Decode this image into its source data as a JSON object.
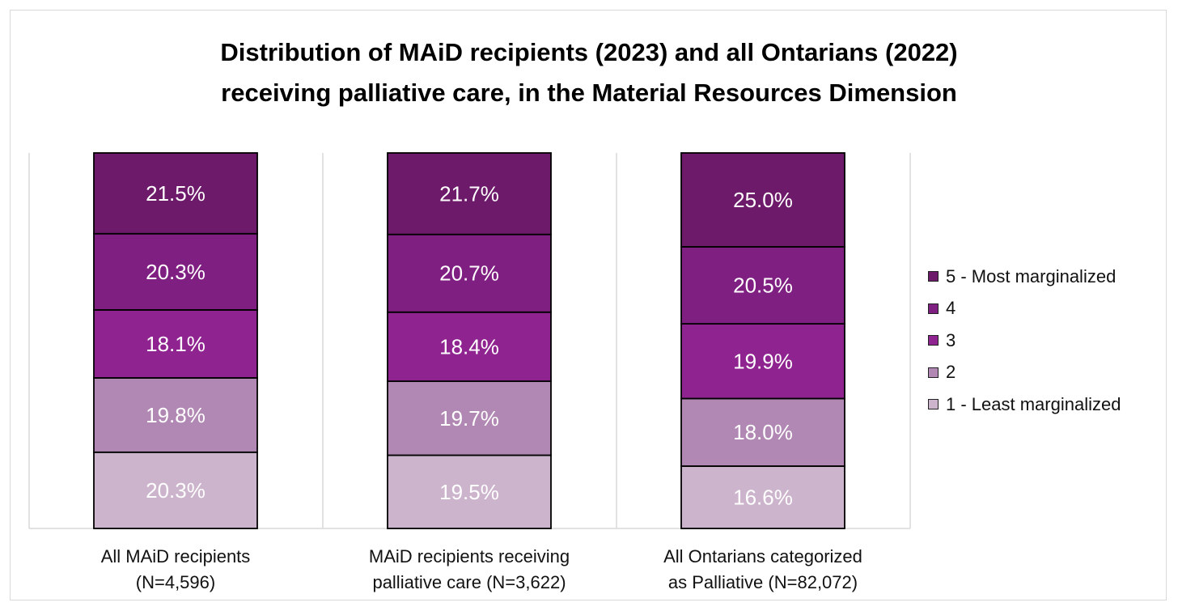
{
  "chart_data": {
    "type": "bar",
    "stacked": true,
    "title_lines": [
      "Distribution of MAiD recipients (2023) and all Ontarians (2022)",
      "receiving palliative care, in the Material Resources Dimension"
    ],
    "categories": [
      {
        "line1": "All MAiD recipients",
        "line2": "(N=4,596)"
      },
      {
        "line1": "MAiD recipients receiving",
        "line2": "palliative care (N=3,622)"
      },
      {
        "line1": "All Ontarians categorized",
        "line2": "as Palliative (N=82,072)"
      }
    ],
    "series": [
      {
        "name": "1 - Least marginalized",
        "color": "#cdb4cd",
        "values": [
          20.3,
          19.5,
          16.6
        ],
        "labels": [
          "20.3%",
          "19.5%",
          "16.6%"
        ]
      },
      {
        "name": "2",
        "color": "#b188b3",
        "values": [
          19.8,
          19.7,
          18.0
        ],
        "labels": [
          "19.8%",
          "19.7%",
          "18.0%"
        ]
      },
      {
        "name": "3",
        "color": "#8f2490",
        "values": [
          18.1,
          18.4,
          19.9
        ],
        "labels": [
          "18.1%",
          "18.4%",
          "19.9%"
        ]
      },
      {
        "name": "4",
        "color": "#801f82",
        "values": [
          20.3,
          20.7,
          20.5
        ],
        "labels": [
          "20.3%",
          "20.7%",
          "20.5%"
        ]
      },
      {
        "name": "5 - Most marginalized",
        "color": "#6d1a6b",
        "values": [
          21.5,
          21.7,
          25.0
        ],
        "labels": [
          "21.5%",
          "21.7%",
          "25.0%"
        ]
      }
    ],
    "ylim": [
      0,
      100
    ],
    "grid": false,
    "legend": {
      "position": "right",
      "order": [
        "5 - Most marginalized",
        "4",
        "3",
        "2",
        "1 - Least marginalized"
      ]
    }
  }
}
